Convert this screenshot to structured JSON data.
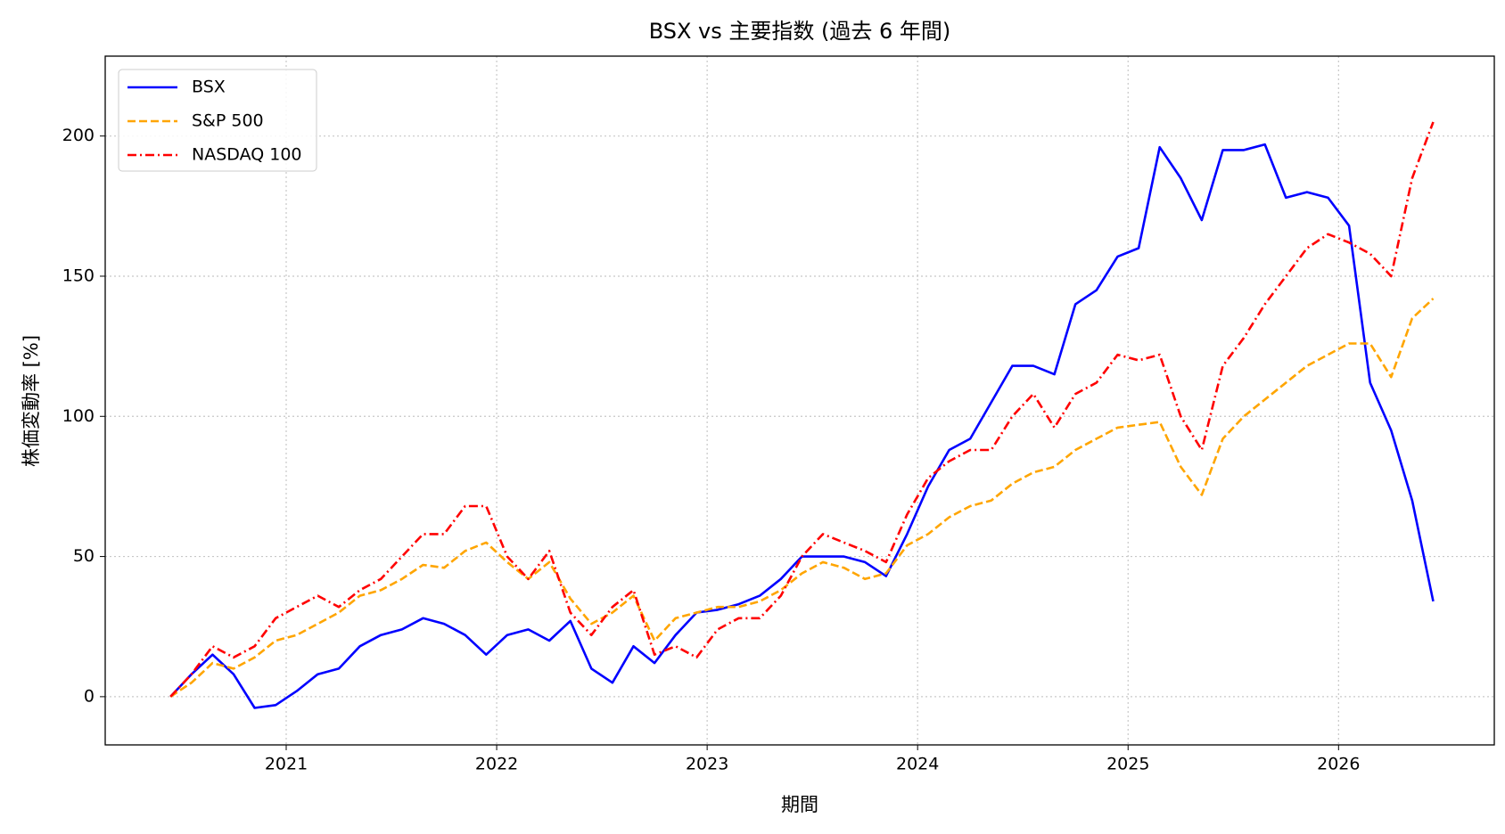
{
  "chart_data": {
    "type": "line",
    "title": "BSX vs 主要指数 (過去 6 年間)",
    "x_label": "期間",
    "y_label": "株価変動率 [%]",
    "x": [
      2020.45,
      2020.55,
      2020.65,
      2020.75,
      2020.85,
      2020.95,
      2021.05,
      2021.15,
      2021.25,
      2021.35,
      2021.45,
      2021.55,
      2021.65,
      2021.75,
      2021.85,
      2021.95,
      2022.05,
      2022.15,
      2022.25,
      2022.35,
      2022.45,
      2022.55,
      2022.65,
      2022.75,
      2022.85,
      2022.95,
      2023.05,
      2023.15,
      2023.25,
      2023.35,
      2023.45,
      2023.55,
      2023.65,
      2023.75,
      2023.85,
      2023.95,
      2024.05,
      2024.15,
      2024.25,
      2024.35,
      2024.45,
      2024.55,
      2024.65,
      2024.75,
      2024.85,
      2024.95,
      2025.05,
      2025.15,
      2025.25,
      2025.35,
      2025.45,
      2025.55,
      2025.65,
      2025.75,
      2025.85,
      2025.95,
      2026.05,
      2026.15,
      2026.25,
      2026.35,
      2026.45
    ],
    "series": [
      {
        "name": "BSX",
        "color": "#0000ff",
        "linestyle": "solid",
        "values": [
          0,
          8,
          15,
          8,
          -4,
          -3,
          2,
          8,
          10,
          18,
          22,
          24,
          28,
          26,
          22,
          15,
          22,
          24,
          20,
          27,
          10,
          5,
          18,
          12,
          22,
          30,
          31,
          33,
          36,
          42,
          50,
          50,
          50,
          48,
          43,
          58,
          75,
          88,
          92,
          105,
          118,
          118,
          115,
          140,
          145,
          157,
          160,
          196,
          185,
          170,
          195,
          195,
          197,
          178,
          180,
          178,
          168,
          112,
          95,
          70,
          34
        ]
      },
      {
        "name": "S&P 500",
        "color": "#ffa500",
        "linestyle": "dashed",
        "values": [
          0,
          5,
          12,
          10,
          14,
          20,
          22,
          26,
          30,
          36,
          38,
          42,
          47,
          46,
          52,
          55,
          48,
          42,
          48,
          35,
          26,
          30,
          36,
          20,
          28,
          30,
          32,
          32,
          34,
          38,
          44,
          48,
          46,
          42,
          44,
          54,
          58,
          64,
          68,
          70,
          76,
          80,
          82,
          88,
          92,
          96,
          97,
          98,
          82,
          72,
          92,
          100,
          106,
          112,
          118,
          122,
          126,
          126,
          114,
          135,
          142
        ]
      },
      {
        "name": "NASDAQ 100",
        "color": "#ff0000",
        "linestyle": "dashdot",
        "values": [
          0,
          8,
          18,
          14,
          18,
          28,
          32,
          36,
          32,
          38,
          42,
          50,
          58,
          58,
          68,
          68,
          50,
          42,
          52,
          30,
          22,
          32,
          38,
          15,
          18,
          14,
          24,
          28,
          28,
          36,
          50,
          58,
          55,
          52,
          48,
          65,
          78,
          84,
          88,
          88,
          100,
          108,
          96,
          108,
          112,
          122,
          120,
          122,
          100,
          88,
          118,
          128,
          140,
          150,
          160,
          165,
          162,
          158,
          150,
          185,
          205
        ]
      }
    ],
    "xlim": [
      2020.14,
      2026.74
    ],
    "xticks": [
      2021,
      2022,
      2023,
      2024,
      2025,
      2026
    ],
    "ylim": [
      -17.2,
      228.5
    ],
    "yticks": [
      0,
      50,
      100,
      150,
      200
    ],
    "grid": true,
    "legend": "upper left"
  }
}
